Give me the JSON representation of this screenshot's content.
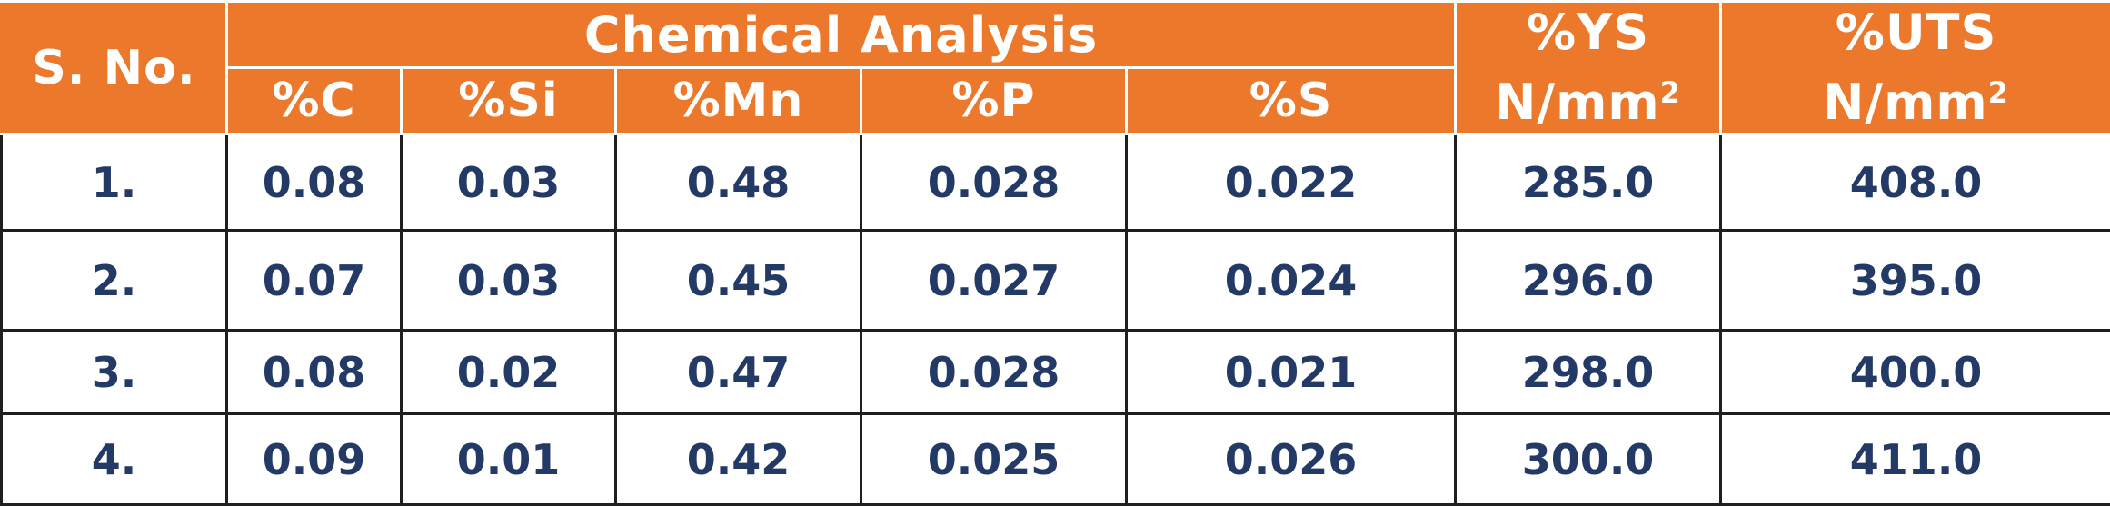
{
  "table": {
    "header": {
      "sno": "S. No.",
      "group": "Chemical Analysis",
      "ys_line1": "%YS",
      "ys_line2": "N/mm",
      "ys_sup": "2",
      "uts_line1": "%UTS",
      "uts_line2": "N/mm",
      "uts_sup": "2",
      "sub": [
        "%C",
        "%Si",
        "%Mn",
        "%P",
        "%S"
      ]
    },
    "rows": [
      {
        "sno": "1.",
        "c": "0.08",
        "si": "0.03",
        "mn": "0.48",
        "p": "0.028",
        "s": "0.022",
        "ys": "285.0",
        "uts": "408.0"
      },
      {
        "sno": "2.",
        "c": "0.07",
        "si": "0.03",
        "mn": "0.45",
        "p": "0.027",
        "s": "0.024",
        "ys": "296.0",
        "uts": "395.0"
      },
      {
        "sno": "3.",
        "c": "0.08",
        "si": "0.02",
        "mn": "0.47",
        "p": "0.028",
        "s": "0.021",
        "ys": "298.0",
        "uts": "400.0"
      },
      {
        "sno": "4.",
        "c": "0.09",
        "si": "0.01",
        "mn": "0.42",
        "p": "0.025",
        "s": "0.026",
        "ys": "300.0",
        "uts": "411.0"
      }
    ]
  },
  "colors": {
    "header_bg": "#EC782B",
    "header_text": "#ffffff",
    "body_text": "#233A66",
    "grid": "#1f1f1f"
  }
}
